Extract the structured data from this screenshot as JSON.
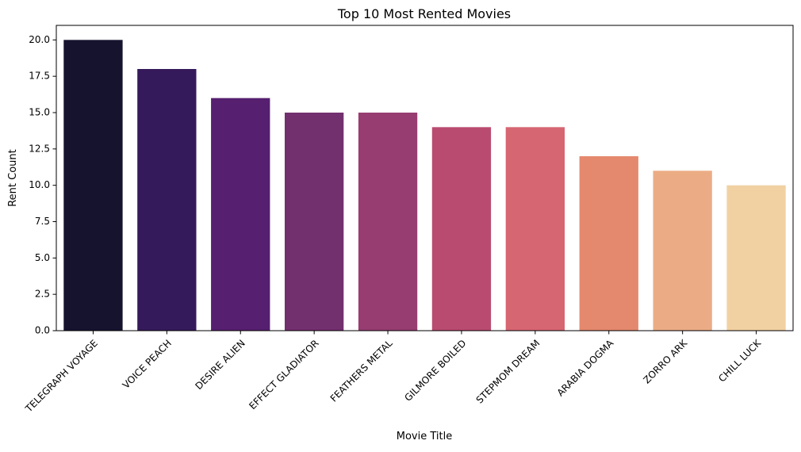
{
  "chart_data": {
    "type": "bar",
    "title": "Top 10 Most Rented Movies",
    "xlabel": "Movie Title",
    "ylabel": "Rent Count",
    "categories": [
      "TELEGRAPH VOYAGE",
      "VOICE PEACH",
      "DESIRE ALIEN",
      "EFFECT GLADIATOR",
      "FEATHERS METAL",
      "GILMORE BOILED",
      "STEPMOM DREAM",
      "ARABIA DOGMA",
      "ZORRO ARK",
      "CHILL LUCK"
    ],
    "values": [
      20,
      18,
      16,
      15,
      15,
      14,
      14,
      12,
      11,
      10
    ],
    "bar_colors": [
      "#16132f",
      "#351a5b",
      "#561f6f",
      "#73306f",
      "#973d71",
      "#ba4b70",
      "#d66672",
      "#e4896e",
      "#ebac85",
      "#f1d1a2"
    ],
    "ylim": [
      0,
      21
    ],
    "yticks": [
      0.0,
      2.5,
      5.0,
      7.5,
      10.0,
      12.5,
      15.0,
      17.5,
      20.0
    ],
    "grid": false,
    "legend": "none"
  }
}
